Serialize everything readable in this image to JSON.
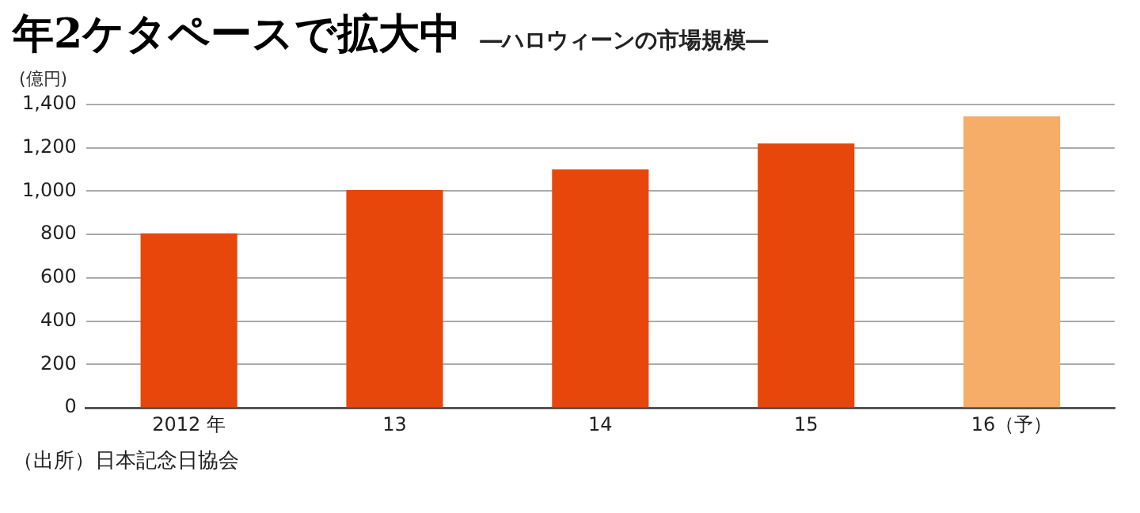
{
  "chart_data": {
    "type": "bar",
    "title": "年2ケタペースで拡大中",
    "subtitle": "―ハロウィーンの市場規模―",
    "ylabel": "(億円)",
    "categories": [
      "2012 年",
      "13",
      "14",
      "15",
      "16（予）"
    ],
    "values": [
      805,
      1005,
      1100,
      1220,
      1345
    ],
    "colors": [
      "#e8470c",
      "#e8470c",
      "#e8470c",
      "#e8470c",
      "#f5ad68"
    ],
    "ylim": [
      0,
      1400
    ],
    "yticks": [
      0,
      {
        "value": 200,
        "label": "200"
      },
      {
        "value": 400,
        "label": "400"
      },
      {
        "value": 600,
        "label": "600"
      },
      {
        "value": 800,
        "label": "800"
      },
      {
        "value": 1000,
        "label": "1,000"
      },
      {
        "value": 1200,
        "label": "1,200"
      },
      {
        "value": 1400,
        "label": "1,400"
      }
    ],
    "grid": "y",
    "legend": false,
    "annotations": [
      "（出所）日本記念日協会"
    ]
  }
}
